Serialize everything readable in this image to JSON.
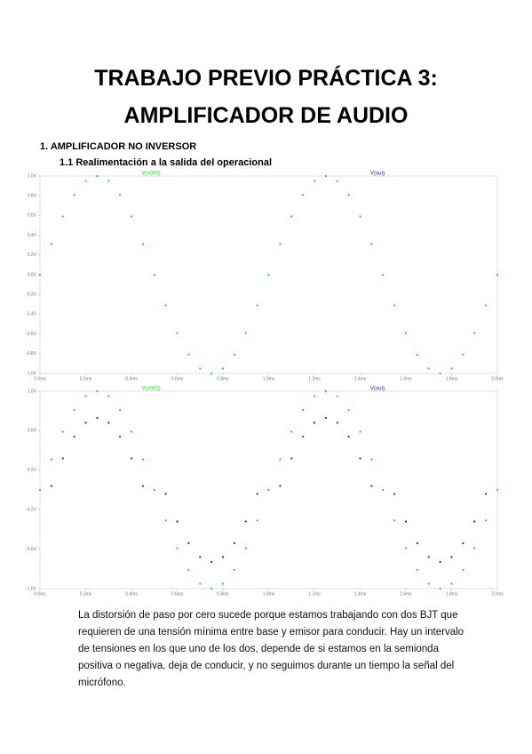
{
  "document": {
    "title_line1": "TRABAJO PREVIO PRÁCTICA 3:",
    "title_line2": "AMPLIFICADOR DE AUDIO",
    "section": "1.   AMPLIFICADOR NO INVERSOR",
    "subsection": "1.1  Realimentación a la salida del operacional",
    "paragraph": "La distorsión de paso por cero sucede porque estamos trabajando con dos BJT que requieren de una tensión mínima entre base y emisor para conducir. Hay un intervalo de tensiones en los que uno de los dos, depende de si estamos en la semionda positiva o negativa, deja de conducir, y no seguimos durante un tiempo la señal del micrófono."
  },
  "chart_data": [
    {
      "type": "scatter",
      "annotation": "V(out)",
      "x": [
        0,
        0.05,
        0.1,
        0.15,
        0.2,
        0.25,
        0.3,
        0.35,
        0.4,
        0.45,
        0.5,
        0.55,
        0.6,
        0.65,
        0.7,
        0.75,
        0.8,
        0.85,
        0.9,
        0.95,
        1,
        1.05,
        1.1,
        1.15,
        1.2,
        1.25,
        1.3,
        1.35,
        1.4,
        1.45,
        1.5,
        1.55,
        1.6,
        1.65,
        1.7,
        1.75,
        1.8,
        1.85,
        1.9,
        1.95,
        2
      ],
      "series": [
        {
          "name": "V(n003)",
          "color": "#22dd22",
          "values": [
            0,
            0.31,
            0.59,
            0.81,
            0.95,
            1,
            0.95,
            0.81,
            0.59,
            0.31,
            0,
            -0.31,
            -0.59,
            -0.81,
            -0.95,
            -1,
            -0.95,
            -0.81,
            -0.59,
            -0.31,
            0,
            0.31,
            0.59,
            0.81,
            0.95,
            1,
            0.95,
            0.81,
            0.59,
            0.31,
            0,
            -0.31,
            -0.59,
            -0.81,
            -0.95,
            -1,
            -0.95,
            -0.81,
            -0.59,
            -0.31,
            0
          ]
        }
      ],
      "xlim": [
        0,
        2
      ],
      "xticks": [
        {
          "value": 0,
          "label": "0.0ms"
        },
        {
          "value": 0.2,
          "label": "0.2ms"
        },
        {
          "value": 0.4,
          "label": "0.4ms"
        },
        {
          "value": 0.6,
          "label": "0.6ms"
        },
        {
          "value": 0.8,
          "label": "0.8ms"
        },
        {
          "value": 1,
          "label": "1.0ms"
        },
        {
          "value": 1.2,
          "label": "1.2ms"
        },
        {
          "value": 1.4,
          "label": "1.4ms"
        },
        {
          "value": 1.6,
          "label": "1.6ms"
        },
        {
          "value": 1.8,
          "label": "1.8ms"
        },
        {
          "value": 2,
          "label": "2.0ms"
        }
      ],
      "ylim": [
        -1,
        1
      ],
      "yticks": [
        {
          "value": -1,
          "label": "-1.0V"
        },
        {
          "value": -0.8,
          "label": "-0.8V"
        },
        {
          "value": -0.6,
          "label": "-0.6V"
        },
        {
          "value": -0.4,
          "label": "-0.4V"
        },
        {
          "value": -0.2,
          "label": "-0.2V"
        },
        {
          "value": 0,
          "label": "0.0V"
        },
        {
          "value": 0.2,
          "label": "0.2V"
        },
        {
          "value": 0.4,
          "label": "0.4V"
        },
        {
          "value": 0.6,
          "label": "0.6V"
        },
        {
          "value": 0.8,
          "label": "0.8V"
        },
        {
          "value": 1,
          "label": "1.0V"
        }
      ]
    },
    {
      "type": "scatter",
      "x": [
        0,
        0.05,
        0.1,
        0.15,
        0.2,
        0.25,
        0.3,
        0.35,
        0.4,
        0.45,
        0.5,
        0.55,
        0.6,
        0.65,
        0.7,
        0.75,
        0.8,
        0.85,
        0.9,
        0.95,
        1,
        1.05,
        1.1,
        1.15,
        1.2,
        1.25,
        1.3,
        1.35,
        1.4,
        1.45,
        1.5,
        1.55,
        1.6,
        1.65,
        1.7,
        1.75,
        1.8,
        1.85,
        1.9,
        1.95,
        2
      ],
      "series": [
        {
          "name": "V(n003)",
          "color": "#22dd22",
          "values": [
            0,
            0.31,
            0.59,
            0.81,
            0.95,
            1,
            0.95,
            0.81,
            0.59,
            0.31,
            0,
            -0.31,
            -0.59,
            -0.81,
            -0.95,
            -1,
            -0.95,
            -0.81,
            -0.59,
            -0.31,
            0,
            0.31,
            0.59,
            0.81,
            0.95,
            1,
            0.95,
            0.81,
            0.59,
            0.31,
            0,
            -0.31,
            -0.59,
            -0.81,
            -0.95,
            -1,
            -0.95,
            -0.81,
            -0.59,
            -0.31,
            0
          ]
        },
        {
          "name": "V(out)",
          "color": "#2222cc",
          "values": [
            null,
            0.04,
            0.32,
            0.54,
            0.68,
            0.73,
            0.68,
            0.54,
            0.32,
            0.04,
            null,
            -0.04,
            -0.32,
            -0.54,
            -0.68,
            -0.73,
            -0.68,
            -0.54,
            -0.32,
            -0.04,
            null,
            0.04,
            0.32,
            0.54,
            0.68,
            0.73,
            0.68,
            0.54,
            0.32,
            0.04,
            null,
            -0.04,
            -0.32,
            -0.54,
            -0.68,
            -0.73,
            -0.68,
            -0.54,
            -0.32,
            -0.04,
            null
          ]
        }
      ],
      "xlim": [
        0,
        2
      ],
      "xticks": [
        {
          "value": 0,
          "label": "0.0ms"
        },
        {
          "value": 0.2,
          "label": "0.2ms"
        },
        {
          "value": 0.4,
          "label": "0.4ms"
        },
        {
          "value": 0.6,
          "label": "0.6ms"
        },
        {
          "value": 0.8,
          "label": "0.8ms"
        },
        {
          "value": 1,
          "label": "1.0ms"
        },
        {
          "value": 1.2,
          "label": "1.2ms"
        },
        {
          "value": 1.4,
          "label": "1.4ms"
        },
        {
          "value": 1.6,
          "label": "1.6ms"
        },
        {
          "value": 1.8,
          "label": "1.8ms"
        },
        {
          "value": 2,
          "label": "2.0ms"
        }
      ],
      "ylim": [
        -1,
        1
      ],
      "yticks": [
        {
          "value": -1,
          "label": "-1.0V"
        },
        {
          "value": -0.6,
          "label": "-0.6V"
        },
        {
          "value": -0.2,
          "label": "-0.2V"
        },
        {
          "value": 0.2,
          "label": "0.2V"
        },
        {
          "value": 0.6,
          "label": "0.6V"
        },
        {
          "value": 1,
          "label": "1.0V"
        }
      ]
    }
  ]
}
